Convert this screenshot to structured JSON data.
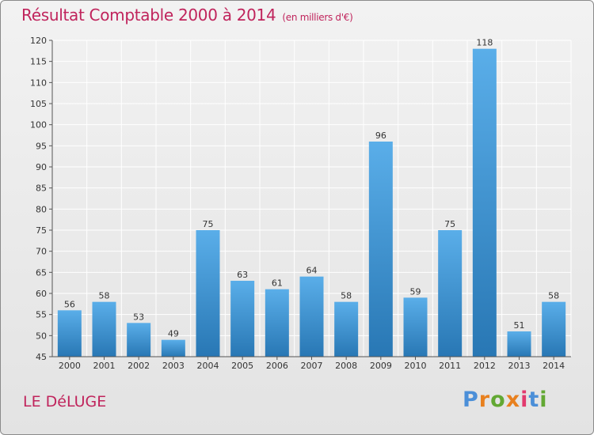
{
  "header": {
    "title": "Résultat Comptable 2000 à 2014",
    "subtitle": "(en milliers d'€)"
  },
  "footer": {
    "commune": "LE DéLUGE",
    "logo": {
      "letters": [
        "P",
        "r",
        "o",
        "x",
        "i",
        "t",
        "i"
      ]
    }
  },
  "colors": {
    "title": "#c0245c",
    "bar_light": "#5aaee9",
    "bar_dark": "#2877b4",
    "logo_letters": [
      "#4b8fd8",
      "#e8801e",
      "#62a833",
      "#e8801e",
      "#e23a6e",
      "#4b8fd8",
      "#62a833"
    ]
  },
  "chart_data": {
    "type": "bar",
    "title": "Résultat Comptable 2000 à 2014",
    "subtitle": "(en milliers d'€)",
    "xlabel": "",
    "ylabel": "",
    "categories": [
      "2000",
      "2001",
      "2002",
      "2003",
      "2004",
      "2005",
      "2006",
      "2007",
      "2008",
      "2009",
      "2010",
      "2011",
      "2012",
      "2013",
      "2014"
    ],
    "values": [
      56,
      58,
      53,
      49,
      75,
      63,
      61,
      64,
      58,
      96,
      59,
      75,
      118,
      51,
      58
    ],
    "ylim": [
      45,
      120
    ],
    "yticks": [
      45,
      50,
      55,
      60,
      65,
      70,
      75,
      80,
      85,
      90,
      95,
      100,
      105,
      110,
      115,
      120
    ],
    "grid": true,
    "legend": "none"
  }
}
